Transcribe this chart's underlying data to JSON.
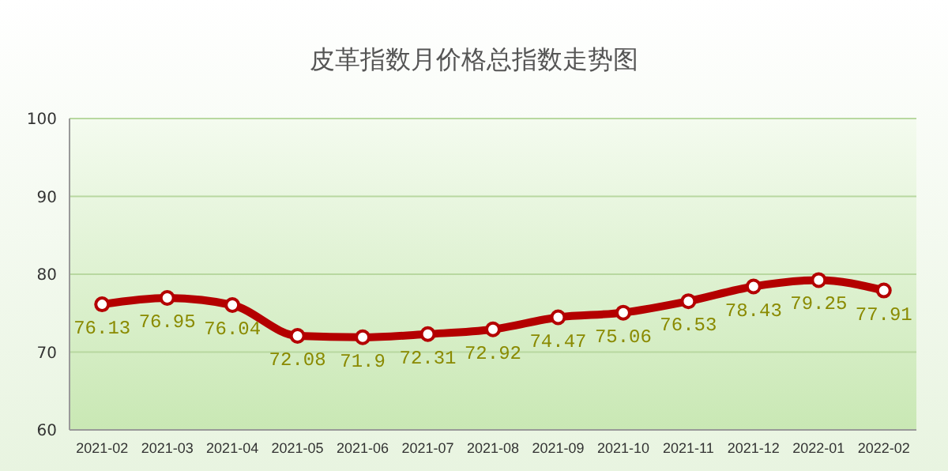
{
  "chart_data": {
    "type": "line",
    "title": "皮革指数月价格总指数走势图",
    "categories": [
      "2021-02",
      "2021-03",
      "2021-04",
      "2021-05",
      "2021-06",
      "2021-07",
      "2021-08",
      "2021-09",
      "2021-10",
      "2021-11",
      "2021-12",
      "2022-01",
      "2022-02"
    ],
    "series": [
      {
        "color": "#b40000",
        "values": [
          76.13,
          76.95,
          76.04,
          72.08,
          71.9,
          72.31,
          72.92,
          74.47,
          75.06,
          76.53,
          78.43,
          79.25,
          77.91
        ]
      }
    ],
    "ylim": [
      60,
      100
    ],
    "yticks": [
      60,
      70,
      80,
      90,
      100
    ],
    "grid": "y",
    "marker": "circle",
    "line_style": "solid",
    "data_labels": true
  }
}
